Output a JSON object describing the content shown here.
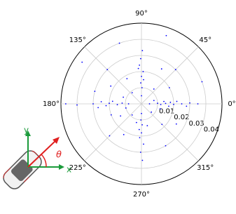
{
  "chart_data": {
    "type": "polar-scatter",
    "color": "#0000ff",
    "xticks": [
      {
        "value": 0,
        "label": "0°"
      },
      {
        "value": 45,
        "label": "45°"
      },
      {
        "value": 90,
        "label": "90°"
      },
      {
        "value": 135,
        "label": "135°"
      },
      {
        "value": 180,
        "label": "180°"
      },
      {
        "value": 225,
        "label": "225°"
      },
      {
        "value": 270,
        "label": "270°"
      },
      {
        "value": 315,
        "label": "315°"
      }
    ],
    "ylim": [
      0,
      0.05
    ],
    "yticks": [
      0.01,
      0.02,
      0.03,
      0.04
    ],
    "grid": true,
    "theta": [
      0,
      2,
      -2,
      1,
      3,
      -1,
      0,
      4,
      -3,
      1,
      6,
      -5,
      0,
      180,
      178,
      182,
      179,
      183,
      177,
      180,
      175,
      185,
      181,
      180,
      90,
      88,
      92,
      90,
      87,
      93,
      91,
      89,
      95,
      85,
      270,
      268,
      272,
      270,
      267,
      273,
      269,
      271,
      265,
      30,
      45,
      60,
      120,
      135,
      150,
      160,
      200,
      210,
      225,
      240,
      300,
      315,
      330,
      20,
      70,
      110,
      145,
      195,
      345,
      15,
      165,
      255,
      285,
      50,
      130,
      230,
      320
    ],
    "r": [
      0.005,
      0.01,
      0.012,
      0.015,
      0.018,
      0.02,
      0.025,
      0.022,
      0.028,
      0.03,
      0.014,
      0.017,
      0.035,
      0.008,
      0.012,
      0.015,
      0.02,
      0.022,
      0.025,
      0.03,
      0.018,
      0.027,
      0.04,
      0.047,
      0.005,
      0.01,
      0.013,
      0.017,
      0.02,
      0.024,
      0.028,
      0.033,
      0.022,
      0.015,
      0.006,
      0.01,
      0.013,
      0.018,
      0.021,
      0.025,
      0.03,
      0.035,
      0.016,
      0.02,
      0.03,
      0.025,
      0.018,
      0.03,
      0.022,
      0.012,
      0.02,
      0.015,
      0.028,
      0.022,
      0.03,
      0.018,
      0.025,
      0.04,
      0.045,
      0.04,
      0.045,
      0.01,
      0.012,
      0.008,
      0.03,
      0.012,
      0.014,
      0.012,
      0.009,
      0.009,
      0.008
    ]
  },
  "inset": {
    "x_label": "x",
    "y_label": "y",
    "angle_label": "θ"
  }
}
